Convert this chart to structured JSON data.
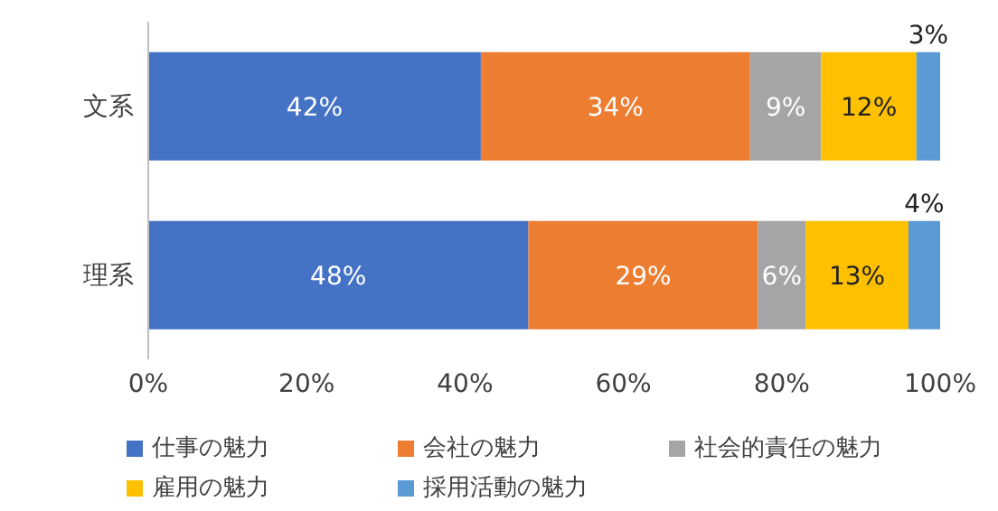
{
  "chart_data": {
    "type": "bar",
    "orientation": "horizontal",
    "stacked": true,
    "categories": [
      "文系",
      "理系"
    ],
    "series": [
      {
        "name": "仕事の魅力",
        "color": "#4472c4",
        "values": [
          42,
          48
        ],
        "value_labels": [
          "42%",
          "48%"
        ]
      },
      {
        "name": "会社の魅力",
        "color": "#ed7d31",
        "values": [
          34,
          29
        ],
        "value_labels": [
          "34%",
          "29%"
        ]
      },
      {
        "name": "社会的責任の魅力",
        "color": "#a5a5a5",
        "values": [
          9,
          6
        ],
        "value_labels": [
          "9%",
          "6%"
        ]
      },
      {
        "name": "雇用の魅力",
        "color": "#ffc000",
        "values": [
          12,
          13
        ],
        "value_labels": [
          "12%",
          "13%"
        ]
      },
      {
        "name": "採用活動の魅力",
        "color": "#5b9bd5",
        "values": [
          3,
          4
        ],
        "value_labels": [
          "3%",
          "4%"
        ]
      }
    ],
    "xlim": [
      0,
      100
    ],
    "xticks": [
      {
        "value": 0,
        "label": "0%"
      },
      {
        "value": 20,
        "label": "20%"
      },
      {
        "value": 40,
        "label": "40%"
      },
      {
        "value": 60,
        "label": "60%"
      },
      {
        "value": 80,
        "label": "80%"
      },
      {
        "value": 100,
        "label": "100%"
      }
    ],
    "legend": "bottom"
  }
}
